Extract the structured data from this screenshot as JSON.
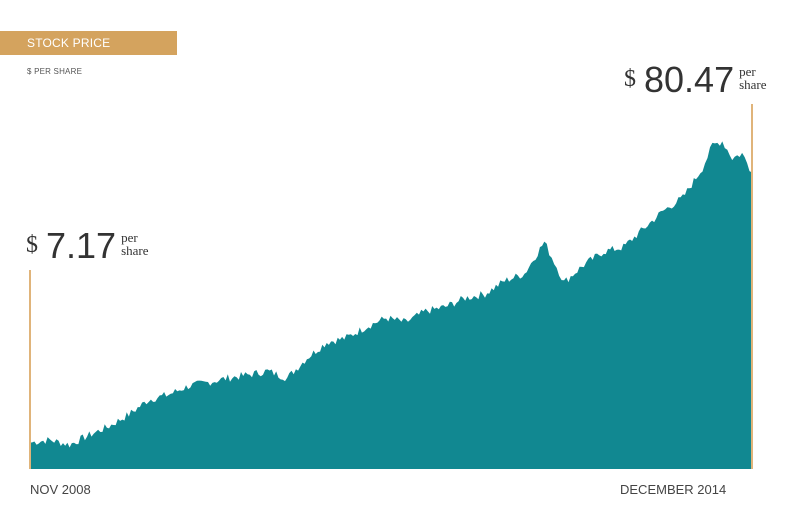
{
  "header": {
    "title": "STOCK PRICE",
    "subtitle": "$ PER SHARE"
  },
  "colors": {
    "area": "#118891",
    "accent": "#d4a35e",
    "marker_line": "#e0b47a",
    "text": "#333333"
  },
  "chart_data": {
    "type": "area",
    "title": "STOCK PRICE",
    "subtitle": "$ PER SHARE",
    "xlabel": "",
    "ylabel": "",
    "ylim": [
      0,
      92
    ],
    "x_tick_labels": [
      "NOV 2008",
      "DECEMBER 2014"
    ],
    "grid": false,
    "legend": "none",
    "series": [
      {
        "x": [
          "2008-11",
          "2009-01",
          "2009-03",
          "2009-05",
          "2009-07",
          "2009-09",
          "2009-11",
          "2010-01",
          "2010-03",
          "2010-05",
          "2010-07",
          "2010-09",
          "2010-11",
          "2011-01",
          "2011-03",
          "2011-05",
          "2011-07",
          "2011-09",
          "2011-11",
          "2012-01",
          "2012-03",
          "2012-05",
          "2012-07",
          "2012-09",
          "2012-11",
          "2013-01",
          "2013-03",
          "2013-04",
          "2013-05",
          "2013-07",
          "2013-09",
          "2013-11",
          "2014-01",
          "2014-03",
          "2014-05",
          "2014-07",
          "2014-08",
          "2014-09",
          "2014-10",
          "2014-11",
          "2014-12"
        ],
        "values": [
          7.17,
          7.9,
          6.6,
          9.2,
          11.6,
          14.8,
          18.8,
          20.2,
          22.5,
          23.5,
          24.7,
          25.5,
          26.6,
          24.7,
          30.1,
          34.4,
          35.6,
          38.6,
          41.0,
          39.8,
          42.8,
          44.0,
          46.4,
          47.5,
          51.1,
          53.0,
          61.6,
          56.2,
          50.7,
          55.4,
          59.0,
          60.2,
          65.1,
          70.0,
          73.6,
          81.7,
          87.8,
          89.0,
          84.4,
          85.6,
          80.47
        ]
      }
    ],
    "annotations": [
      {
        "at": "start",
        "currency": "$",
        "value": "7.17",
        "unit_line1": "per",
        "unit_line2": "share"
      },
      {
        "at": "end",
        "currency": "$",
        "value": "80.47",
        "unit_line1": "per",
        "unit_line2": "share"
      }
    ]
  }
}
